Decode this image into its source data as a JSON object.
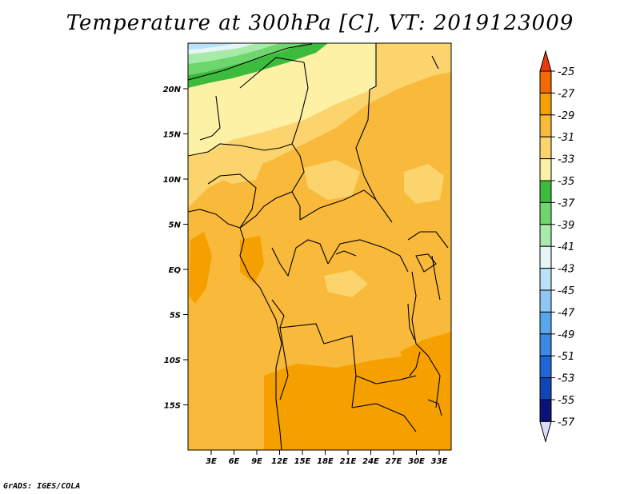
{
  "title": "Temperature at 300hPa [C], VT: 2019123009",
  "credit": "GrADS: IGES/COLA",
  "map": {
    "lat_labels": [
      "20N",
      "15N",
      "10N",
      "5N",
      "EQ",
      "5S",
      "10S",
      "15S"
    ],
    "lon_labels": [
      "3E",
      "6E",
      "9E",
      "12E",
      "15E",
      "18E",
      "21E",
      "24E",
      "27E",
      "30E",
      "33E"
    ]
  },
  "colorbar": {
    "labels": [
      "-25",
      "-27",
      "-29",
      "-31",
      "-33",
      "-35",
      "-37",
      "-39",
      "-41",
      "-43",
      "-45",
      "-47",
      "-49",
      "-51",
      "-53",
      "-55",
      "-57"
    ],
    "colors": [
      "#ee3a0b",
      "#f46a00",
      "#f6a000",
      "#f9b93a",
      "#fcd46e",
      "#fdf1a6",
      "#3dbb3d",
      "#6fd66f",
      "#a8eba8",
      "#e6f6f6",
      "#b9e2f6",
      "#8ec8f2",
      "#58a6ee",
      "#3c88e6",
      "#2066d8",
      "#0f45b4",
      "#0a137a"
    ],
    "below_color": "#dcdcf5"
  }
}
